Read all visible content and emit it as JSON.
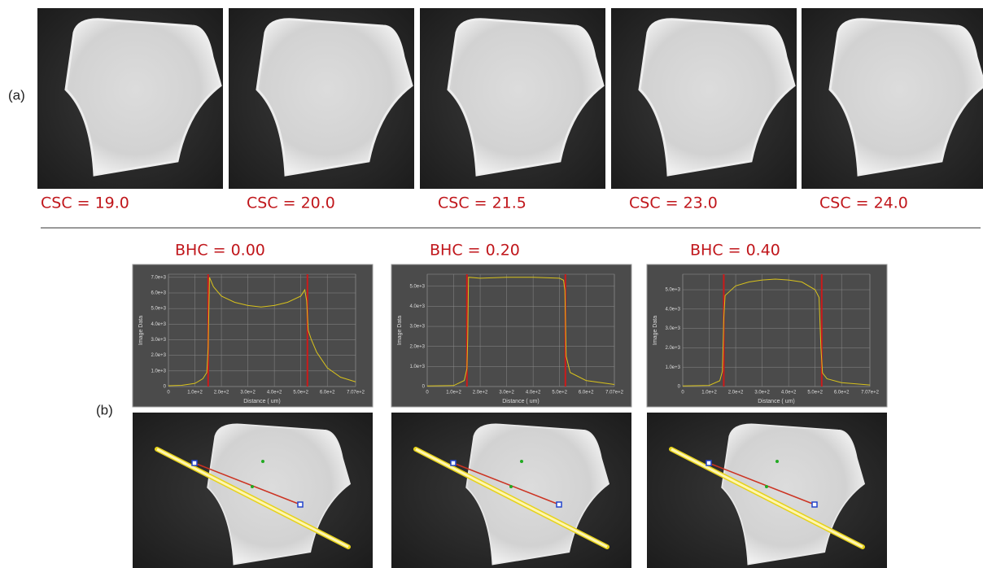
{
  "panel_a": {
    "label": "(a)",
    "images": [
      {
        "caption": "CSC = 19.0"
      },
      {
        "caption": "CSC = 20.0"
      },
      {
        "caption": "CSC = 21.5"
      },
      {
        "caption": "CSC = 23.0"
      },
      {
        "caption": "CSC = 24.0"
      }
    ]
  },
  "panel_b": {
    "label": "(b)",
    "columns": [
      {
        "caption": "BHC = 0.00",
        "chart_data": {
          "type": "line",
          "x_label": "Distance ( um)",
          "y_label": "Image Data",
          "color": "#d8c21c",
          "marker_color": "#cc1a1a",
          "grid": true,
          "x": [
            0,
            50,
            100,
            130,
            145,
            150,
            155,
            170,
            200,
            250,
            300,
            350,
            400,
            450,
            500,
            515,
            522,
            528,
            540,
            560,
            600,
            650,
            707
          ],
          "values": [
            50,
            80,
            200,
            500,
            900,
            2500,
            7000,
            6400,
            5800,
            5400,
            5200,
            5100,
            5200,
            5400,
            5800,
            6200,
            5500,
            3600,
            3000,
            2200,
            1200,
            600,
            300
          ],
          "markers": [
            150,
            525
          ],
          "xlim": [
            0,
            707
          ],
          "ylim": [
            0,
            7200
          ],
          "xticks": [
            0,
            {
              "value": 100,
              "label": "1.0e+2"
            },
            {
              "value": 200,
              "label": "2.0e+2"
            },
            {
              "value": 300,
              "label": "3.0e+2"
            },
            {
              "value": 400,
              "label": "4.0e+2"
            },
            {
              "value": 500,
              "label": "5.0e+2"
            },
            {
              "value": 600,
              "label": "6.0e+2"
            },
            {
              "value": 707,
              "label": "7.07e+2"
            }
          ],
          "yticks": [
            0,
            {
              "value": 1000,
              "label": "1.0e+3"
            },
            {
              "value": 2000,
              "label": "2.0e+3"
            },
            {
              "value": 3000,
              "label": "3.0e+3"
            },
            {
              "value": 4000,
              "label": "4.0e+3"
            },
            {
              "value": 5000,
              "label": "5.0e+3"
            },
            {
              "value": 6000,
              "label": "6.0e+3"
            },
            {
              "value": 7000,
              "label": "7.0e+3"
            }
          ]
        }
      },
      {
        "caption": "BHC = 0.20",
        "chart_data": {
          "type": "line",
          "x_label": "Distance ( um)",
          "y_label": "Image Data",
          "color": "#d8c21c",
          "marker_color": "#cc1a1a",
          "grid": true,
          "x": [
            0,
            100,
            140,
            150,
            153,
            156,
            200,
            300,
            400,
            500,
            515,
            520,
            525,
            540,
            600,
            707
          ],
          "values": [
            30,
            50,
            300,
            900,
            2400,
            5450,
            5400,
            5450,
            5450,
            5400,
            5300,
            4800,
            1500,
            700,
            300,
            100
          ],
          "markers": [
            150,
            522
          ],
          "xlim": [
            0,
            707
          ],
          "ylim": [
            0,
            5600
          ],
          "xticks": [
            0,
            {
              "value": 100,
              "label": "1.0e+2"
            },
            {
              "value": 200,
              "label": "2.0e+2"
            },
            {
              "value": 300,
              "label": "3.0e+2"
            },
            {
              "value": 400,
              "label": "4.0e+2"
            },
            {
              "value": 500,
              "label": "5.0e+2"
            },
            {
              "value": 600,
              "label": "6.0e+2"
            },
            {
              "value": 707,
              "label": "7.07e+2"
            }
          ],
          "yticks": [
            0,
            {
              "value": 1000,
              "label": "1.0e+3"
            },
            {
              "value": 2000,
              "label": "2.0e+3"
            },
            {
              "value": 3000,
              "label": "3.0e+3"
            },
            {
              "value": 4000,
              "label": "4.0e+3"
            },
            {
              "value": 5000,
              "label": "5.0e+3"
            }
          ]
        }
      },
      {
        "caption": "BHC = 0.40",
        "chart_data": {
          "type": "line",
          "x_label": "Distance ( um)",
          "y_label": "Image Data",
          "color": "#d8c21c",
          "marker_color": "#cc1a1a",
          "grid": true,
          "x": [
            0,
            100,
            140,
            150,
            155,
            160,
            200,
            250,
            300,
            350,
            400,
            450,
            500,
            515,
            522,
            528,
            545,
            600,
            707
          ],
          "values": [
            30,
            60,
            300,
            800,
            3500,
            4700,
            5200,
            5400,
            5500,
            5550,
            5500,
            5400,
            5000,
            4600,
            2000,
            700,
            400,
            200,
            80
          ],
          "markers": [
            155,
            525
          ],
          "xlim": [
            0,
            707
          ],
          "ylim": [
            0,
            5800
          ],
          "xticks": [
            0,
            {
              "value": 100,
              "label": "1.0e+2"
            },
            {
              "value": 200,
              "label": "2.0e+2"
            },
            {
              "value": 300,
              "label": "3.0e+2"
            },
            {
              "value": 400,
              "label": "4.0e+2"
            },
            {
              "value": 500,
              "label": "5.0e+2"
            },
            {
              "value": 600,
              "label": "6.0e+2"
            },
            {
              "value": 707,
              "label": "7.07e+2"
            }
          ],
          "yticks": [
            0,
            {
              "value": 1000,
              "label": "1.0e+3"
            },
            {
              "value": 2000,
              "label": "2.0e+3"
            },
            {
              "value": 3000,
              "label": "3.0e+3"
            },
            {
              "value": 4000,
              "label": "4.0e+3"
            },
            {
              "value": 5000,
              "label": "5.0e+3"
            }
          ]
        }
      }
    ]
  }
}
